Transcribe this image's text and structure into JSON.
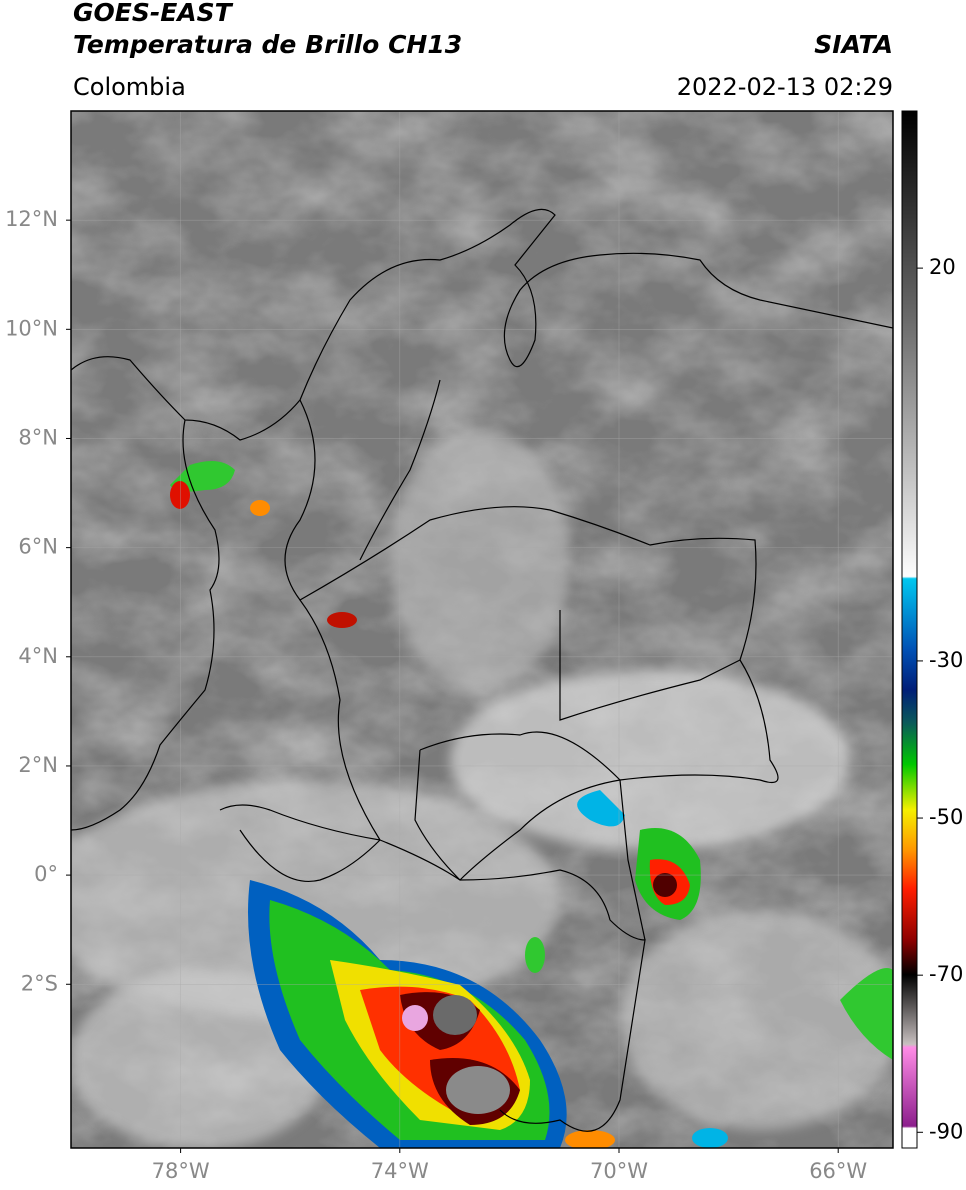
{
  "header": {
    "satellite": "GOES-EAST",
    "product": "Temperatura de Brillo CH13",
    "source": "SIATA",
    "region": "Colombia",
    "datetime": "2022-02-13 02:29"
  },
  "map": {
    "lonlim": [
      -80,
      -65
    ],
    "latlim": [
      -5,
      14
    ],
    "lonticks": [
      {
        "value": -78,
        "label": "78°W"
      },
      {
        "value": -74,
        "label": "74°W"
      },
      {
        "value": -70,
        "label": "70°W"
      },
      {
        "value": -66,
        "label": "66°W"
      }
    ],
    "latticks": [
      {
        "value": 12,
        "label": "12°N"
      },
      {
        "value": 10,
        "label": "10°N"
      },
      {
        "value": 8,
        "label": "8°N"
      },
      {
        "value": 6,
        "label": "6°N"
      },
      {
        "value": 4,
        "label": "4°N"
      },
      {
        "value": 2,
        "label": "2°N"
      },
      {
        "value": 0,
        "label": "0°"
      },
      {
        "value": -2,
        "label": "2°S"
      }
    ],
    "grid": true
  },
  "colorbar": {
    "range": [
      -92,
      40
    ],
    "ticks": [
      20,
      -30,
      -50,
      -70,
      -90
    ]
  }
}
